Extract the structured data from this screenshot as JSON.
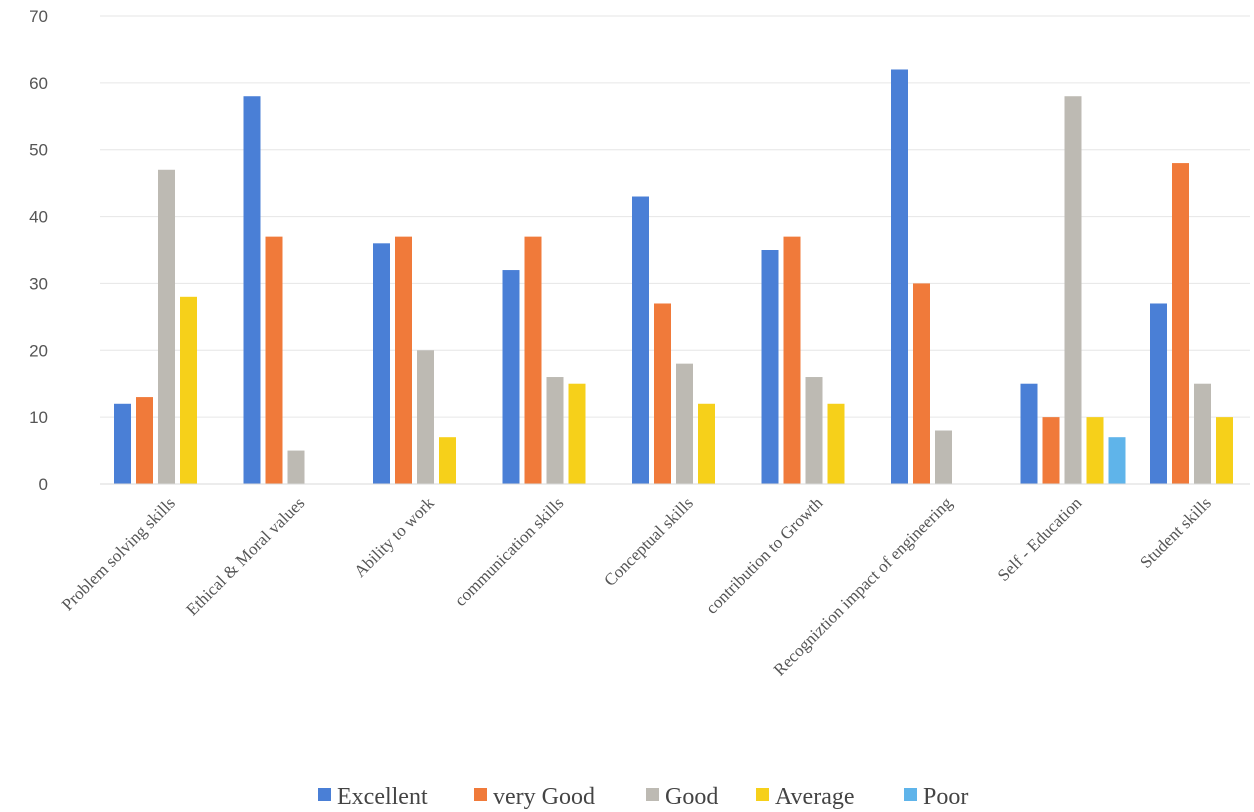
{
  "chart_data": {
    "type": "bar",
    "categories": [
      "Problem solving skills",
      "Ethical & Moral values",
      "Ability to work",
      "communication skills",
      "Conceptual skills",
      "contribution to Growth",
      "Recogniztion impact of engineering",
      "Self -  Education",
      "Student skills"
    ],
    "series": [
      {
        "name": "Excellent",
        "color": "#4a7fd6",
        "values": [
          12,
          58,
          36,
          32,
          43,
          35,
          62,
          15,
          27
        ]
      },
      {
        "name": "very Good",
        "color": "#f07a3a",
        "values": [
          13,
          37,
          37,
          37,
          27,
          37,
          30,
          10,
          48
        ]
      },
      {
        "name": "Good",
        "color": "#bdbab3",
        "values": [
          47,
          5,
          20,
          16,
          18,
          16,
          8,
          58,
          15
        ]
      },
      {
        "name": "Average",
        "color": "#f6d01a",
        "values": [
          28,
          null,
          7,
          15,
          12,
          12,
          null,
          10,
          10
        ]
      },
      {
        "name": "Poor",
        "color": "#5fb4ea",
        "values": [
          null,
          null,
          null,
          null,
          null,
          null,
          null,
          7,
          null
        ]
      }
    ],
    "yticks": [
      "0",
      "10",
      "20",
      "30",
      "40",
      "50",
      "60",
      "70"
    ],
    "ylim": [
      0,
      70
    ],
    "grid": true,
    "legend_position": "bottom-center"
  }
}
